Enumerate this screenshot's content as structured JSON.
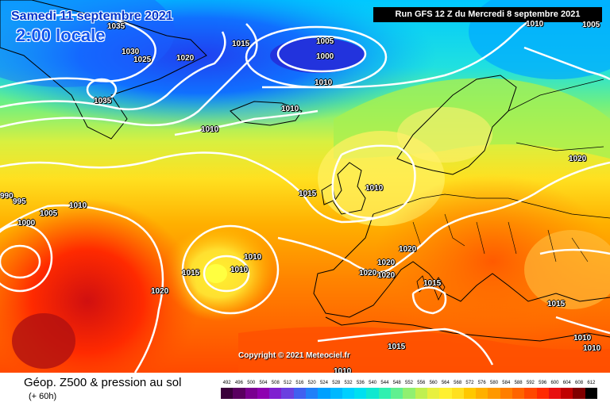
{
  "header": {
    "date": "Samedi 11 septembre 2021",
    "local_time": "2:00 locale",
    "run": "Run GFS 12 Z du Mercredi 8 septembre 2021"
  },
  "copyright": "Copyright © 2021 Meteociel.fr",
  "footer": {
    "title": "Géop. Z500 & pression au sol",
    "subtitle": "(+ 60h)"
  },
  "legend_scale": {
    "values": [
      "492",
      "496",
      "500",
      "504",
      "508",
      "512",
      "516",
      "520",
      "524",
      "528",
      "532",
      "536",
      "540",
      "544",
      "548",
      "552",
      "556",
      "560",
      "564",
      "568",
      "572",
      "576",
      "580",
      "584",
      "588",
      "592",
      "596",
      "600",
      "604",
      "608",
      "612"
    ],
    "colors": [
      "#3a003a",
      "#5a0060",
      "#7a0090",
      "#8e00b0",
      "#7f20d0",
      "#6a40e0",
      "#4060f0",
      "#2080f8",
      "#00a0ff",
      "#00b8ff",
      "#00d0ff",
      "#00e0f0",
      "#10e8d0",
      "#30f0b0",
      "#60f090",
      "#90f070",
      "#c0f050",
      "#e8f040",
      "#fff030",
      "#ffe020",
      "#ffc800",
      "#ffb000",
      "#ff9800",
      "#ff7e00",
      "#ff6400",
      "#ff4800",
      "#ff2a00",
      "#e81010",
      "#c00000",
      "#800000",
      "#000000"
    ]
  },
  "isobars": [
    {
      "id": "iso-1035-a",
      "text": "1035"
    },
    {
      "id": "iso-1030",
      "text": "1030"
    },
    {
      "id": "iso-1025",
      "text": "1025"
    },
    {
      "id": "iso-1035-b",
      "text": "1035"
    },
    {
      "id": "iso-1020-a",
      "text": "1020"
    },
    {
      "id": "iso-1015-a",
      "text": "1015"
    },
    {
      "id": "iso-1005-a",
      "text": "1005"
    },
    {
      "id": "iso-1000-a",
      "text": "1000"
    },
    {
      "id": "iso-1010-a",
      "text": "1010"
    },
    {
      "id": "iso-1010-b",
      "text": "1010"
    },
    {
      "id": "iso-1010-c",
      "text": "1010"
    },
    {
      "id": "iso-1010-d",
      "text": "1010"
    },
    {
      "id": "iso-1005-b",
      "text": "1005"
    },
    {
      "id": "iso-1005-c",
      "text": "1005"
    },
    {
      "id": "iso-1015-b",
      "text": "1015"
    },
    {
      "id": "iso-1010-e",
      "text": "1010"
    },
    {
      "id": "iso-1020-b",
      "text": "1020"
    },
    {
      "id": "iso-990",
      "text": "990"
    },
    {
      "id": "iso-995",
      "text": "995"
    },
    {
      "id": "iso-1005-d",
      "text": "1005"
    },
    {
      "id": "iso-1010-f",
      "text": "1010"
    },
    {
      "id": "iso-1000-b",
      "text": "1000"
    },
    {
      "id": "iso-1010-g",
      "text": "1010"
    },
    {
      "id": "iso-1015-c",
      "text": "1015"
    },
    {
      "id": "iso-1010-h",
      "text": "1010"
    },
    {
      "id": "iso-1020-c",
      "text": "1020"
    },
    {
      "id": "iso-1020-d",
      "text": "1020"
    },
    {
      "id": "iso-1020-e",
      "text": "1020"
    },
    {
      "id": "iso-1020-f",
      "text": "1020"
    },
    {
      "id": "iso-1015-d",
      "text": "1015"
    },
    {
      "id": "iso-1015-e",
      "text": "1015"
    },
    {
      "id": "iso-1015-f",
      "text": "1015"
    },
    {
      "id": "iso-1010-i",
      "text": "1010"
    },
    {
      "id": "iso-1010-j",
      "text": "1010"
    },
    {
      "id": "iso-1010-k",
      "text": "1010"
    },
    {
      "id": "iso-1020-g",
      "text": "1020"
    }
  ]
}
